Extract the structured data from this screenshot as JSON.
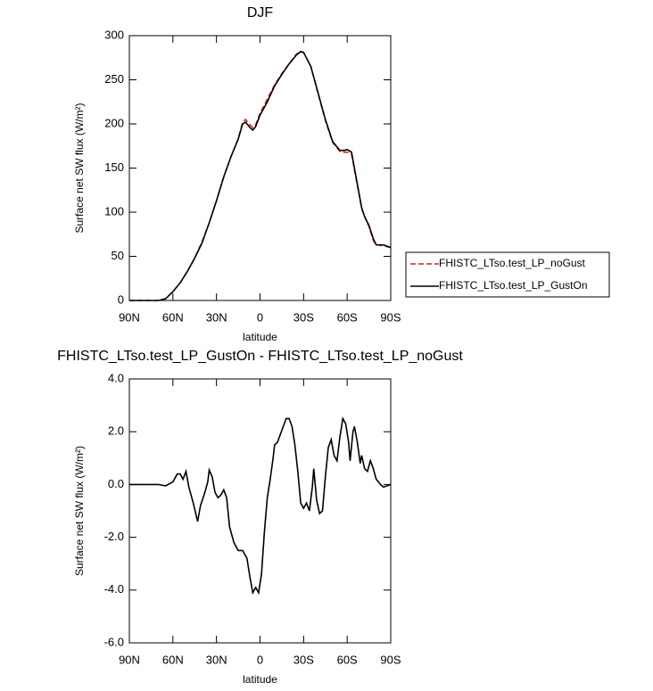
{
  "chart_data": [
    {
      "type": "line",
      "title": "DJF",
      "x_label": "latitude",
      "y_label": "Surface net SW flux (W/m²)",
      "x": [
        90,
        80,
        70,
        65,
        60,
        55,
        50,
        45,
        40,
        35,
        30,
        25,
        20,
        15,
        12,
        10,
        7,
        5,
        3,
        0,
        -5,
        -10,
        -15,
        -20,
        -25,
        -28,
        -30,
        -35,
        -40,
        -45,
        -50,
        -55,
        -58,
        -60,
        -63,
        -65,
        -70,
        -72,
        -75,
        -78,
        -80,
        -85,
        -90
      ],
      "series": [
        {
          "name": "FHISTC_LTso.test_LP_noGust",
          "color": "#e41a1c",
          "dashed": true,
          "values": [
            0,
            0,
            0,
            2,
            10,
            20,
            33,
            48,
            66,
            88,
            113,
            140,
            163,
            183,
            202,
            205,
            199,
            196,
            199,
            212,
            228,
            244,
            257,
            268,
            279,
            282,
            281,
            265,
            234,
            204,
            179,
            169,
            168,
            168,
            166,
            148,
            104,
            95,
            84,
            68,
            63,
            62,
            60
          ]
        },
        {
          "name": "FHISTC_LTso.test_LP_GustOn",
          "color": "#000000",
          "dashed": false,
          "values": [
            0,
            0,
            0,
            2,
            10,
            20,
            33,
            48,
            65,
            88,
            113,
            140,
            163,
            183,
            200,
            202,
            196,
            193,
            197,
            210,
            225,
            243,
            256,
            268,
            278,
            282,
            281,
            265,
            235,
            205,
            180,
            170,
            170,
            171,
            168,
            150,
            105,
            95,
            85,
            70,
            63,
            63,
            60
          ]
        }
      ],
      "xlim": [
        90,
        -90
      ],
      "xticks": [
        {
          "value": 90,
          "label": "90N"
        },
        {
          "value": 60,
          "label": "60N"
        },
        {
          "value": 30,
          "label": "30N"
        },
        0,
        {
          "value": -30,
          "label": "30S"
        },
        {
          "value": -60,
          "label": "60S"
        },
        {
          "value": -90,
          "label": "90S"
        }
      ],
      "ylim": [
        0,
        300
      ],
      "yticks": [
        0,
        50,
        100,
        150,
        200,
        250,
        300
      ],
      "legend": "outside-right"
    },
    {
      "type": "line",
      "title": "FHISTC_LTso.test_LP_GustOn - FHISTC_LTso.test_LP_noGust",
      "x_label": "latitude",
      "y_label": "Surface net SW flux (W/m²)",
      "x": [
        90,
        80,
        70,
        65,
        60,
        57,
        55,
        53,
        51,
        49,
        46,
        43,
        41,
        38,
        36,
        35,
        33,
        31,
        29,
        27,
        25,
        23,
        21,
        18,
        15,
        12,
        9,
        7,
        5,
        3,
        1,
        -1,
        -3,
        -5,
        -7,
        -9,
        -10,
        -12,
        -14,
        -16,
        -18,
        -20,
        -22,
        -24,
        -26,
        -28,
        -30,
        -32,
        -34,
        -36,
        -37,
        -39,
        -41,
        -43,
        -45,
        -47,
        -49,
        -51,
        -53,
        -55,
        -57,
        -59,
        -61,
        -62,
        -64,
        -65,
        -67,
        -69,
        -70,
        -72,
        -74,
        -76,
        -78,
        -80,
        -83,
        -85,
        -90
      ],
      "series": [
        {
          "color": "#000000",
          "dashed": false,
          "values": [
            0,
            0,
            0,
            -0.05,
            0.1,
            0.4,
            0.4,
            0.2,
            0.5,
            -0.1,
            -0.7,
            -1.4,
            -0.8,
            -0.3,
            0.1,
            0.55,
            0.3,
            -0.3,
            -0.5,
            -0.4,
            -0.2,
            -0.5,
            -1.6,
            -2.2,
            -2.5,
            -2.5,
            -2.8,
            -3.5,
            -4.1,
            -3.9,
            -4.1,
            -3.4,
            -1.8,
            -0.5,
            0.2,
            1.0,
            1.5,
            1.6,
            1.9,
            2.2,
            2.5,
            2.5,
            2.2,
            1.5,
            0.5,
            -0.7,
            -0.9,
            -0.7,
            -1.0,
            -0.1,
            0.6,
            -0.6,
            -1.1,
            -1.0,
            0.3,
            1.4,
            1.7,
            1.1,
            0.9,
            1.8,
            2.5,
            2.3,
            1.6,
            0.9,
            2.0,
            2.2,
            1.6,
            0.8,
            1.1,
            0.6,
            0.5,
            0.9,
            0.6,
            0.2,
            0.0,
            -0.1,
            0
          ]
        }
      ],
      "xlim": [
        90,
        -90
      ],
      "xticks": [
        {
          "value": 90,
          "label": "90N"
        },
        {
          "value": 60,
          "label": "60N"
        },
        {
          "value": 30,
          "label": "30N"
        },
        0,
        {
          "value": -30,
          "label": "30S"
        },
        {
          "value": -60,
          "label": "60S"
        },
        {
          "value": -90,
          "label": "90S"
        }
      ],
      "ylim": [
        -6,
        4
      ],
      "yticks": [
        {
          "value": -6,
          "label": "-6.0"
        },
        {
          "value": -4,
          "label": "-4.0"
        },
        {
          "value": -2,
          "label": "-2.0"
        },
        {
          "value": 0,
          "label": "0.0"
        },
        {
          "value": 2,
          "label": "2.0"
        },
        {
          "value": 4,
          "label": "4.0"
        }
      ]
    }
  ]
}
